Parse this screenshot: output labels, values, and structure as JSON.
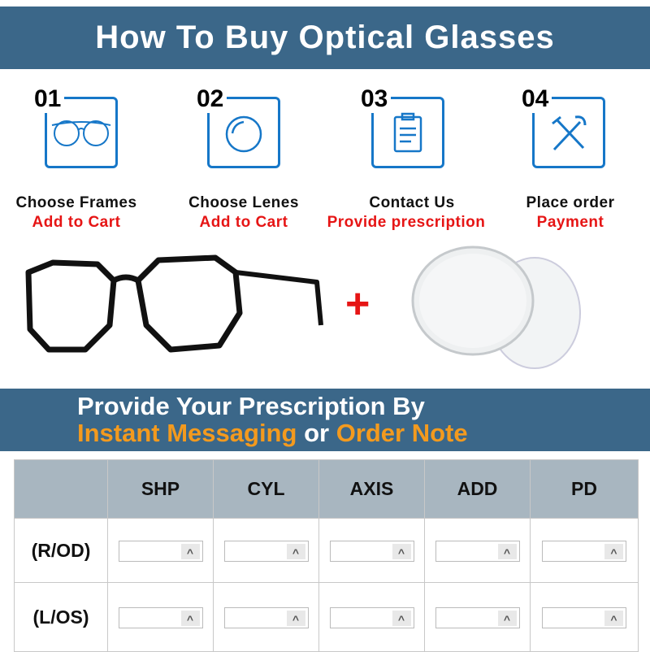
{
  "header": {
    "title": "How To Buy Optical Glasses"
  },
  "steps": [
    {
      "num": "01",
      "title": "Choose Frames",
      "action": "Add to Cart",
      "icon": "glasses-icon"
    },
    {
      "num": "02",
      "title": "Choose Lenes",
      "action": "Add to Cart",
      "icon": "lens-icon"
    },
    {
      "num": "03",
      "title": "Contact Us",
      "action": "Provide prescription",
      "icon": "clipboard-icon"
    },
    {
      "num": "04",
      "title": "Place order",
      "action": "Payment",
      "icon": "tools-icon"
    }
  ],
  "plus": "+",
  "prescription_banner": {
    "line1": "Provide Your Prescription By",
    "opt1": "Instant Messaging",
    "or": "or",
    "opt2": "Order Note"
  },
  "table": {
    "columns": [
      "SHP",
      "CYL",
      "AXIS",
      "ADD",
      "PD"
    ],
    "rows": [
      "(R/OD)",
      "(L/OS)"
    ],
    "spinner": "^"
  },
  "colors": {
    "banner": "#3b6789",
    "accent": "#1677c8",
    "red": "#e61515",
    "orange": "#f39a1e"
  }
}
